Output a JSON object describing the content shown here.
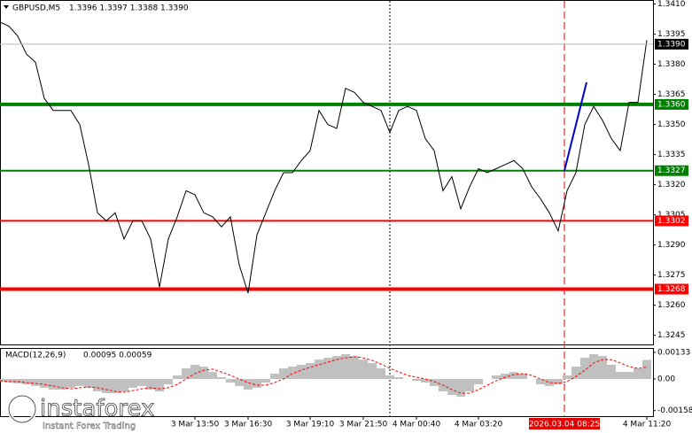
{
  "chart_data": [
    {
      "type": "line",
      "title": "GBPUSD,M5",
      "subtitle": "1.3396 1.3397 1.3388 1.3390",
      "xlim": [
        0,
        73.7
      ],
      "ylim": [
        1.324,
        1.3412
      ],
      "yticks": [
        {
          "value": 1.341,
          "label": "1.3410"
        },
        {
          "value": 1.3395,
          "label": "1.3395"
        },
        {
          "value": 1.338,
          "label": "1.3380"
        },
        {
          "value": 1.3365,
          "label": "1.3365"
        },
        {
          "value": 1.335,
          "label": "1.3350"
        },
        {
          "value": 1.3335,
          "label": "1.3335"
        },
        {
          "value": 1.332,
          "label": "1.3320"
        },
        {
          "value": 1.3305,
          "label": "1.3305"
        },
        {
          "value": 1.329,
          "label": "1.3290"
        },
        {
          "value": 1.3275,
          "label": "1.3275"
        },
        {
          "value": 1.326,
          "label": "1.3260"
        },
        {
          "value": 1.3245,
          "label": "1.3245"
        }
      ],
      "xticks": [
        {
          "value": 22,
          "label": "3 Mar 13:50"
        },
        {
          "value": 28,
          "label": "3 Mar 16:30"
        },
        {
          "value": 35,
          "label": "3 Mar 19:10"
        },
        {
          "value": 41,
          "label": "3 Mar 21:50"
        },
        {
          "value": 47,
          "label": "4 Mar 00:40"
        },
        {
          "value": 54,
          "label": "4 Mar 03:20"
        },
        {
          "value": 73,
          "label": "4 Mar 11:20"
        }
      ],
      "series": [
        {
          "color": "#000000",
          "values": [
            1.3401,
            1.3399,
            1.3394,
            1.3385,
            1.3381,
            1.3363,
            1.3357,
            1.3357,
            1.3357,
            1.335,
            1.333,
            1.3306,
            1.3302,
            1.3306,
            1.3293,
            1.3302,
            1.3302,
            1.3293,
            1.3269,
            1.3293,
            1.3304,
            1.3317,
            1.3315,
            1.3306,
            1.3304,
            1.3299,
            1.3304,
            1.328,
            1.3266,
            1.3295,
            1.3306,
            1.3317,
            1.3326,
            1.3326,
            1.3332,
            1.3337,
            1.3357,
            1.335,
            1.3348,
            1.3368,
            1.3366,
            1.3361,
            1.3359,
            1.3357,
            1.3346,
            1.3357,
            1.3359,
            1.3357,
            1.3343,
            1.3337,
            1.3317,
            1.3324,
            1.3308,
            1.3319,
            1.3328,
            1.3326,
            1.3328,
            1.333,
            1.3332,
            1.3328,
            1.3319,
            1.3313,
            1.3306,
            1.3297,
            1.3317,
            1.3326,
            1.335,
            1.3359,
            1.3352,
            1.3343,
            1.3337,
            1.3361,
            1.3361,
            1.3392
          ]
        }
      ],
      "levels": [
        {
          "value": 1.336,
          "label": "1.3360",
          "color": "#008000",
          "thick": true
        },
        {
          "value": 1.3327,
          "label": "1.3327",
          "color": "#008000",
          "thick": false
        },
        {
          "value": 1.3302,
          "label": "1.3302",
          "color": "#ff0000",
          "thick": false
        },
        {
          "value": 1.3268,
          "label": "1.3268",
          "color": "#ff0000",
          "thick": true
        }
      ],
      "current_price": {
        "value": 1.339,
        "label": "1.3390"
      },
      "trendline": {
        "color": "#0000cc",
        "x": [
          63.7,
          66.2
        ],
        "values": [
          1.3327,
          1.3371
        ]
      },
      "vlines": [
        {
          "x": 44,
          "color": "#000000"
        },
        {
          "x": 63.7,
          "color": "#e00000",
          "label": "2026.03.04 08:25"
        }
      ]
    },
    {
      "type": "macd",
      "title": "MACD(12,26,9)",
      "subtitle": "0.00095 0.00059",
      "xlim": [
        0,
        73.7
      ],
      "ylim": [
        -0.00186,
        0.00155
      ],
      "yticks": [
        0.00133,
        {
          "value": 0,
          "label": "0.00"
        },
        -0.00158
      ],
      "series": [
        {
          "kind": "bar",
          "color": "#c0c0c0",
          "values": [
            -0.00013,
            -0.00018,
            -0.00022,
            -0.00027,
            -0.00035,
            -0.00044,
            -0.00053,
            -0.00053,
            -0.00044,
            -0.00035,
            -0.00044,
            -0.00062,
            -0.00071,
            -0.00071,
            -0.00062,
            -0.00044,
            -0.00035,
            -0.00053,
            -0.00062,
            -0.00027,
            0.00018,
            0.00053,
            0.00071,
            0.00062,
            0.00035,
            9e-05,
            -0.00018,
            -0.00035,
            -0.00053,
            -0.00044,
            -0.00018,
            0.00027,
            0.00053,
            0.00062,
            0.00071,
            0.0008,
            0.00097,
            0.00106,
            0.00115,
            0.00124,
            0.00115,
            0.00097,
            0.0008,
            0.00053,
            0.00018,
            9e-05,
            0,
            -9e-05,
            -0.00018,
            -0.00035,
            -0.00062,
            -0.0008,
            -0.00089,
            -0.00062,
            -0.00027,
            0,
            0.00018,
            0.00027,
            0.00035,
            0.00027,
            0,
            -0.00027,
            -0.00035,
            -0.00027,
            0.00018,
            0.00062,
            0.00106,
            0.00124,
            0.00115,
            0.00071,
            0.00035,
            0.00035,
            0.00053,
            0.00095
          ]
        },
        {
          "kind": "line",
          "color": "#ff0000",
          "values": [
            -9e-05,
            -0.00013,
            -0.00013,
            -0.00018,
            -0.00022,
            -0.00027,
            -0.00035,
            -0.00044,
            -0.00049,
            -0.00044,
            -0.0004,
            -0.00044,
            -0.00053,
            -0.00062,
            -0.00066,
            -0.00058,
            -0.00049,
            -0.00044,
            -0.00049,
            -0.00044,
            -0.00027,
            0,
            0.00027,
            0.00044,
            0.00049,
            0.00035,
            0.00018,
            0,
            -0.00018,
            -0.00031,
            -0.00031,
            -0.00018,
            0,
            0.00027,
            0.00044,
            0.00058,
            0.00071,
            0.00084,
            0.00097,
            0.00106,
            0.00111,
            0.00106,
            0.00093,
            0.00075,
            0.00053,
            0.00035,
            0.00018,
            9e-05,
            0,
            -0.00013,
            -0.00031,
            -0.00053,
            -0.00071,
            -0.00071,
            -0.00053,
            -0.00031,
            -9e-05,
            9e-05,
            0.00022,
            0.00027,
            0.00018,
            0,
            -0.00018,
            -0.00022,
            -0.00013,
            0.00013,
            0.00044,
            0.0008,
            0.00097,
            0.00097,
            0.0008,
            0.00062,
            0.00053,
            0.00059
          ]
        }
      ]
    }
  ],
  "watermark": {
    "brand": "instaforex",
    "tagline": "Instant Forex Trading"
  }
}
